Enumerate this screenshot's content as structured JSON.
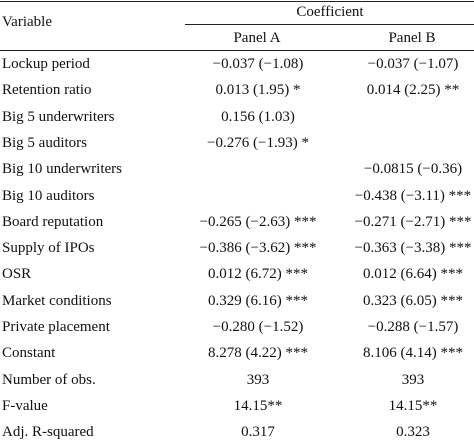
{
  "table": {
    "header": {
      "variable": "Variable",
      "group": "Coefficient",
      "columns": [
        "Panel A",
        "Panel B"
      ]
    },
    "rows": [
      [
        "Lockup period",
        "−0.037 (−1.08)",
        "−0.037 (−1.07)"
      ],
      [
        "Retention ratio",
        "0.013 (1.95) *",
        "0.014 (2.25) **"
      ],
      [
        "Big 5 underwriters",
        "0.156 (1.03)",
        null
      ],
      [
        "Big 5 auditors",
        "−0.276 (−1.93) *",
        null
      ],
      [
        "Big 10 underwriters",
        null,
        "−0.0815 (−0.36)"
      ],
      [
        "Big 10 auditors",
        null,
        "−0.438 (−3.11) ***"
      ],
      [
        "Board reputation",
        "−0.265 (−2.63) ***",
        "−0.271 (−2.71) ***"
      ],
      [
        "Supply of IPOs",
        "−0.386 (−3.62) ***",
        "−0.363 (−3.38) ***"
      ],
      [
        "OSR",
        "0.012 (6.72) ***",
        "0.012 (6.64) ***"
      ],
      [
        "Market conditions",
        "0.329 (6.16) ***",
        "0.323 (6.05) ***"
      ],
      [
        "Private placement",
        "−0.280 (−1.52)",
        "−0.288 (−1.57)"
      ],
      [
        "Constant",
        "8.278 (4.22) ***",
        "8.106 (4.14) ***"
      ],
      [
        "Number of obs.",
        "393",
        "393"
      ],
      [
        "F-value",
        "14.15**",
        "14.15**"
      ],
      [
        "Adj. R-squared",
        "0.317",
        "0.323"
      ]
    ]
  }
}
